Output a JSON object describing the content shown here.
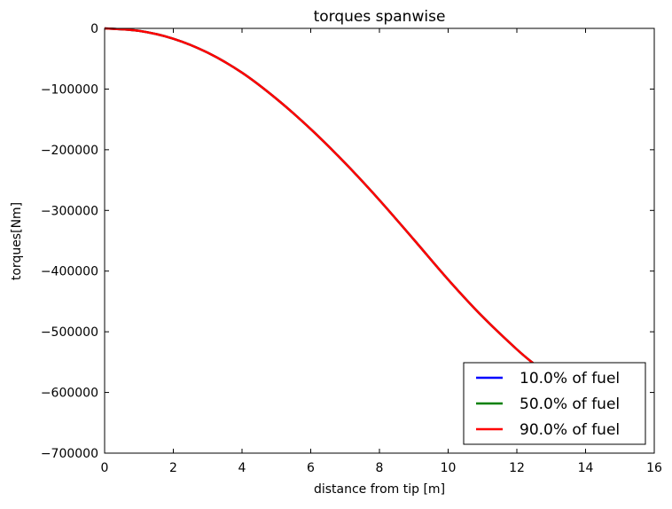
{
  "chart_data": {
    "type": "line",
    "title": "torques spanwise",
    "xlabel": "distance from tip [m]",
    "ylabel": "torques[Nm]",
    "xlim": [
      0,
      16
    ],
    "ylim": [
      -700000,
      0
    ],
    "x_ticks": [
      0,
      2,
      4,
      6,
      8,
      10,
      12,
      14,
      16
    ],
    "y_ticks": [
      0,
      -100000,
      -200000,
      -300000,
      -400000,
      -500000,
      -600000,
      -700000
    ],
    "x_tick_labels": [
      "0",
      "2",
      "4",
      "6",
      "8",
      "10",
      "12",
      "14",
      "16"
    ],
    "y_tick_labels": [
      "0",
      "−100000",
      "−200000",
      "−300000",
      "−400000",
      "−500000",
      "−600000",
      "−700000"
    ],
    "grid": false,
    "legend_position": "lower-right",
    "x": [
      0,
      1,
      2,
      3,
      4,
      5,
      6,
      7,
      8,
      9,
      10,
      11,
      12,
      12.5
    ],
    "series": [
      {
        "name": "10.0% of fuel",
        "color": "#0000ff",
        "values": [
          0,
          -4000,
          -17000,
          -40000,
          -73000,
          -116000,
          -166000,
          -222000,
          -283000,
          -348000,
          -414000,
          -475000,
          -529000,
          -553000
        ]
      },
      {
        "name": "50.0% of fuel",
        "color": "#008000",
        "values": [
          0,
          -4000,
          -17000,
          -40000,
          -73000,
          -116000,
          -166000,
          -222000,
          -283000,
          -348000,
          -414000,
          -475000,
          -529000,
          -553000
        ]
      },
      {
        "name": "90.0% of fuel",
        "color": "#ff0000",
        "values": [
          0,
          -4000,
          -17000,
          -40000,
          -73000,
          -116000,
          -166000,
          -222000,
          -283000,
          -348000,
          -414000,
          -475000,
          -529000,
          -553000
        ]
      }
    ]
  }
}
